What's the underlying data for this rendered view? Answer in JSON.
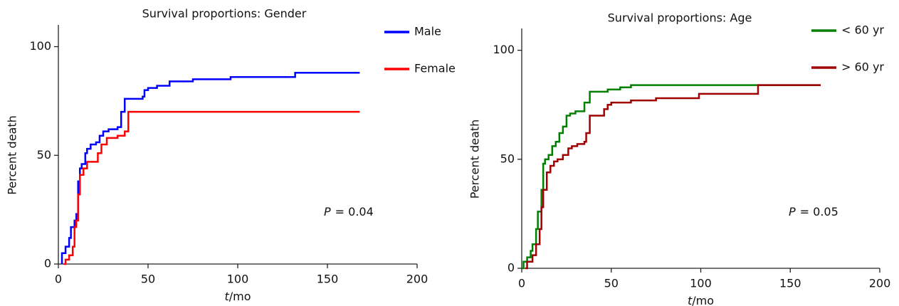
{
  "chart_data": [
    {
      "type": "line",
      "step": true,
      "title": "Survival proportions: Gender",
      "ylabel": "Percent death",
      "xlabel": {
        "symbol": "t",
        "text": "/mo"
      },
      "annotation": {
        "symbol": "P",
        "text": "= 0.04"
      },
      "xlim": [
        0,
        200
      ],
      "xticks": [
        0,
        50,
        100,
        150,
        200
      ],
      "ylim": [
        0,
        110
      ],
      "yticks": [
        0,
        50,
        100
      ],
      "series": [
        {
          "name": "Male",
          "color": "#0000ff",
          "x": [
            2,
            2,
            4,
            6,
            7,
            9,
            10,
            11,
            12,
            13,
            15,
            16,
            18,
            21,
            23,
            25,
            28,
            33,
            35,
            37,
            47,
            48,
            50,
            55,
            62,
            75,
            96,
            132,
            168
          ],
          "values": [
            0,
            5,
            8,
            12,
            17,
            20,
            23,
            38,
            44,
            46,
            51,
            53,
            55,
            56,
            59,
            61,
            62,
            63,
            70,
            76,
            77,
            80,
            81,
            82,
            84,
            85,
            86,
            88,
            88
          ]
        },
        {
          "name": "Female",
          "color": "#ff0000",
          "x": [
            3,
            4,
            6,
            8,
            9,
            10,
            11,
            12,
            14,
            16,
            22,
            24,
            27,
            33,
            37,
            39,
            168
          ],
          "values": [
            0,
            2,
            4,
            8,
            17,
            20,
            32,
            41,
            44,
            47,
            51,
            55,
            58,
            59,
            61,
            70,
            70
          ]
        }
      ]
    },
    {
      "type": "line",
      "step": true,
      "title": "Survival proportions: Age",
      "ylabel": "Percent death",
      "xlabel": {
        "symbol": "t",
        "text": "/mo"
      },
      "annotation": {
        "symbol": "P",
        "text": "= 0.05"
      },
      "xlim": [
        0,
        200
      ],
      "xticks": [
        0,
        50,
        100,
        150,
        200
      ],
      "ylim": [
        0,
        110
      ],
      "yticks": [
        0,
        50,
        100
      ],
      "series": [
        {
          "name": "< 60 yr",
          "color": "#008000",
          "x": [
            0,
            1,
            3,
            5,
            6,
            8,
            9,
            11,
            12,
            13,
            15,
            17,
            19,
            21,
            23,
            25,
            27,
            30,
            35,
            38,
            48,
            55,
            61,
            167
          ],
          "values": [
            0,
            3,
            5,
            8,
            11,
            18,
            26,
            36,
            48,
            50,
            52,
            56,
            58,
            62,
            65,
            70,
            71,
            72,
            76,
            81,
            82,
            83,
            84,
            84
          ]
        },
        {
          "name": "> 60 yr",
          "color": "#a00000",
          "x": [
            2,
            3,
            6,
            8,
            10,
            11,
            12,
            14,
            16,
            18,
            20,
            23,
            26,
            28,
            31,
            35,
            36,
            38,
            46,
            48,
            50,
            61,
            75,
            99,
            132,
            167
          ],
          "values": [
            0,
            3,
            6,
            11,
            18,
            28,
            36,
            44,
            47,
            49,
            50,
            52,
            55,
            56,
            57,
            58,
            62,
            70,
            73,
            75,
            76,
            77,
            78,
            80,
            84,
            84
          ]
        }
      ]
    }
  ]
}
